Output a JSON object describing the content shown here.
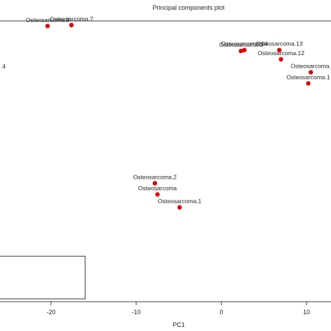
{
  "chart_data": {
    "type": "scatter",
    "title": "Principal components plot",
    "xlabel": "PC1",
    "ylabel": "",
    "x_ticks": [
      -20,
      -10,
      0,
      10
    ],
    "grid": false,
    "legend": "bottom-left",
    "legend_entries": [],
    "point_color": "#e00000",
    "points": [
      {
        "label": "Osteosarcoma.8",
        "x": -20.4,
        "y": 35
      },
      {
        "label": "Osteosarcoma.7",
        "x": -17.6,
        "y": 35.5
      },
      {
        "label": ".4",
        "x": null,
        "y": null
      },
      {
        "label": "Osteosarcoma.14",
        "x": 2.7,
        "y": 22
      },
      {
        "label": "Osteosarcoma.9",
        "x": 2.3,
        "y": 21.5
      },
      {
        "label": "Osteosarcoma.13",
        "x": 6.8,
        "y": 22
      },
      {
        "label": "Osteosarcoma.12",
        "x": 7.0,
        "y": 17
      },
      {
        "label": "Osteosarcoma.",
        "x": 10.5,
        "y": 10
      },
      {
        "label": "Osteosarcoma.1",
        "x": 10.2,
        "y": 4
      },
      {
        "label": "Osteosarcoma.2",
        "x": -7.8,
        "y": -50
      },
      {
        "label": "Osteosarcoma",
        "x": -7.5,
        "y": -56
      },
      {
        "label": "Osteosarcoma.1",
        "x": -4.9,
        "y": -63
      }
    ]
  }
}
